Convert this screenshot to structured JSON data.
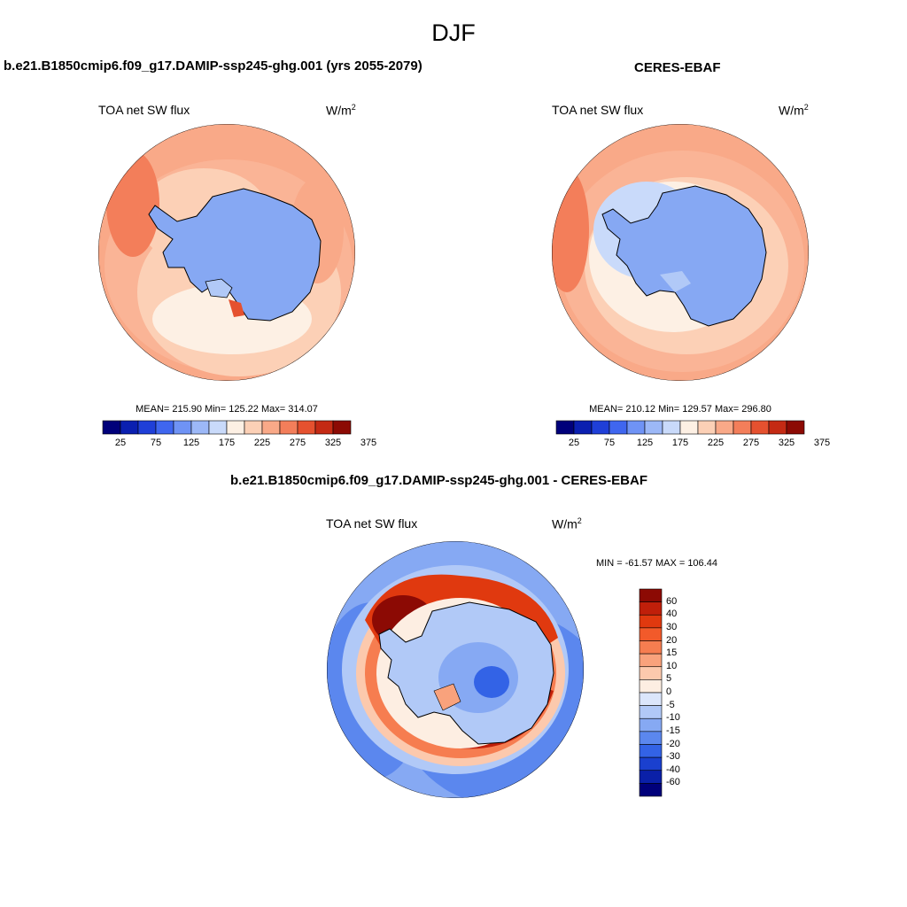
{
  "figure": {
    "title": "DJF",
    "units_sup": "2"
  },
  "panels": [
    {
      "id": "model",
      "title": "b.e21.B1850cmip6.f09_g17.DAMIP-ssp245-ghg.001 (yrs 2055-2079)",
      "variable": "TOA net SW flux",
      "units": "W/m",
      "stats": "MEAN= 215.90  Min= 125.22  Max= 314.07",
      "colorbar_ticks": [
        "25",
        "75",
        "125",
        "175",
        "225",
        "275",
        "325",
        "375"
      ]
    },
    {
      "id": "obs",
      "title": "CERES-EBAF",
      "variable": "TOA net SW flux",
      "units": "W/m",
      "stats": "MEAN= 210.12  Min= 129.57  Max= 296.80",
      "colorbar_ticks": [
        "25",
        "75",
        "125",
        "175",
        "225",
        "275",
        "325",
        "375"
      ]
    },
    {
      "id": "diff",
      "title": "b.e21.B1850cmip6.f09_g17.DAMIP-ssp245-ghg.001 - CERES-EBAF",
      "variable": "TOA net SW flux",
      "units": "W/m",
      "stats": "MIN = -61.57 MAX = 106.44",
      "colorbar_ticks": [
        "60",
        "40",
        "30",
        "20",
        "15",
        "10",
        "5",
        "0",
        "-5",
        "-10",
        "-15",
        "-20",
        "-30",
        "-40",
        "-60"
      ]
    }
  ],
  "colors": {
    "abs_scale": [
      "#00007a",
      "#0a1fb0",
      "#1f3fd8",
      "#3f66ef",
      "#6f93f5",
      "#9cb8f7",
      "#c9dafa",
      "#fdf0e4",
      "#fcd0b6",
      "#f9a988",
      "#f37e5a",
      "#e5512f",
      "#c42a14",
      "#8c0a04"
    ],
    "diff_scale": [
      "#8c0a04",
      "#c01f0a",
      "#e0390f",
      "#f25a2a",
      "#f67d50",
      "#f9a27c",
      "#fcc9ad",
      "#fdeee2",
      "#dbe6fb",
      "#b1c9f7",
      "#86a9f3",
      "#5b87ee",
      "#3363e6",
      "#1a40cf",
      "#0a20a8",
      "#00007a"
    ],
    "antarctica": "#86a8f3",
    "coast": "#000000"
  }
}
